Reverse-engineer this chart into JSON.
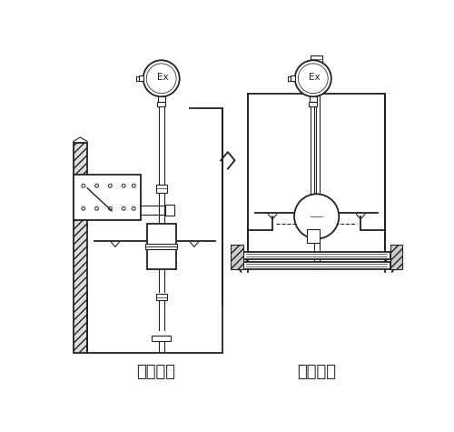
{
  "title_left": "架装固定",
  "title_right": "法兰固定",
  "bg_color": "#ffffff",
  "line_color": "#222222",
  "font_size_label": 13,
  "lw_main": 1.3,
  "lw_thin": 0.8,
  "lw_thick": 1.8
}
